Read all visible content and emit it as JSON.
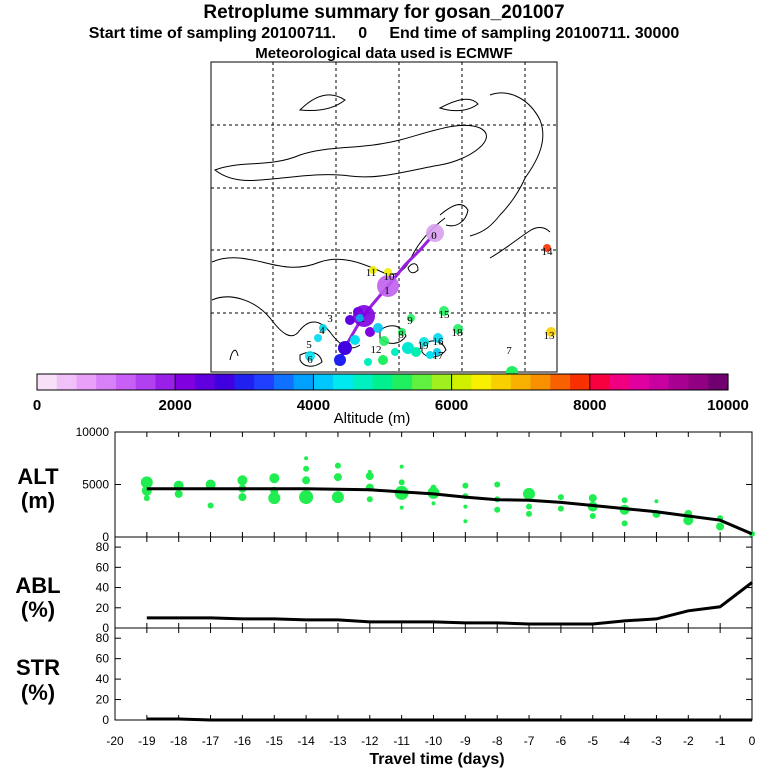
{
  "header": {
    "title": "Retroplume summary for gosan_201007",
    "sampling": "Start time of sampling 20100711.     0     End time of sampling 20100711. 30000",
    "met": "Meteorological data used is ECMWF"
  },
  "colorbar": {
    "label": "Altitude (m)",
    "ticks": [
      "0",
      "2000",
      "4000",
      "6000",
      "8000",
      "10000"
    ],
    "range": [
      0,
      10000
    ],
    "colors": [
      "#f8e0f8",
      "#f0c0f8",
      "#e8a0f8",
      "#d880f8",
      "#c860f8",
      "#b040f0",
      "#9820e8",
      "#8000e0",
      "#6000e0",
      "#4000e0",
      "#2020f0",
      "#2040ff",
      "#1070ff",
      "#00a0ff",
      "#00c8ff",
      "#00e8f0",
      "#00f0c0",
      "#00f090",
      "#20f060",
      "#60f040",
      "#a0f020",
      "#d0f000",
      "#f8f000",
      "#f8d000",
      "#f8b000",
      "#f89000",
      "#f86000",
      "#f83000",
      "#f80040",
      "#f00080",
      "#e000a0",
      "#c800a0",
      "#a80090",
      "#900080",
      "#700070"
    ]
  },
  "map": {
    "positions": [
      {
        "label": "0",
        "color": "#d8a0f0"
      },
      {
        "label": "1",
        "color": "#c060f0"
      },
      {
        "label": "2",
        "color": "#8000e0"
      },
      {
        "label": "3",
        "color": "#00c8f0"
      },
      {
        "label": "4",
        "color": "#00d8e8"
      },
      {
        "label": "5",
        "color": "#00d8f0"
      },
      {
        "label": "6",
        "color": "#00e0f0"
      },
      {
        "label": "7",
        "color": "#00b0f0"
      },
      {
        "label": "8",
        "color": "#20f060"
      },
      {
        "label": "9",
        "color": "#20f060"
      },
      {
        "label": "10",
        "color": "#f0f000"
      },
      {
        "label": "11",
        "color": "#f0f000"
      },
      {
        "label": "12",
        "color": "#20f060"
      },
      {
        "label": "13",
        "color": "#f8d000"
      },
      {
        "label": "14",
        "color": "#f83000"
      },
      {
        "label": "15",
        "color": "#20f060"
      },
      {
        "label": "16",
        "color": "#00d8f0"
      },
      {
        "label": "17",
        "color": "#00c8f0"
      },
      {
        "label": "18",
        "color": "#20f060"
      },
      {
        "label": "19",
        "color": "#00e0e0"
      }
    ]
  },
  "chart_data": [
    {
      "type": "scatter",
      "name": "ALT",
      "ylabel": "ALT\n(m)",
      "ylabel_lines": [
        "ALT",
        "(m)"
      ],
      "ylim": [
        0,
        10000
      ],
      "yticks": [
        "10000",
        "5000",
        "0"
      ],
      "marker_color": "#20ee50",
      "mean_line": {
        "x": [
          -19,
          -18,
          -17,
          -16,
          -15,
          -14,
          -13,
          -12,
          -11,
          -10,
          -9,
          -8,
          -7,
          -6,
          -5,
          -4,
          -3,
          -2,
          -1,
          0
        ],
        "y": [
          4600,
          4600,
          4600,
          4600,
          4600,
          4600,
          4550,
          4500,
          4300,
          4100,
          3800,
          3550,
          3500,
          3300,
          3000,
          2700,
          2400,
          2000,
          1600,
          300
        ]
      },
      "points": [
        {
          "x": -19,
          "y": 5200,
          "s": 6
        },
        {
          "x": -19,
          "y": 4400,
          "s": 5
        },
        {
          "x": -19,
          "y": 3700,
          "s": 3
        },
        {
          "x": -18,
          "y": 4900,
          "s": 5
        },
        {
          "x": -18,
          "y": 4100,
          "s": 4
        },
        {
          "x": -17,
          "y": 5000,
          "s": 5
        },
        {
          "x": -17,
          "y": 3000,
          "s": 3
        },
        {
          "x": -16,
          "y": 5400,
          "s": 5
        },
        {
          "x": -16,
          "y": 4600,
          "s": 4
        },
        {
          "x": -16,
          "y": 3800,
          "s": 4
        },
        {
          "x": -15,
          "y": 5600,
          "s": 5
        },
        {
          "x": -15,
          "y": 4400,
          "s": 4
        },
        {
          "x": -15,
          "y": 3700,
          "s": 6
        },
        {
          "x": -14,
          "y": 7500,
          "s": 2
        },
        {
          "x": -14,
          "y": 6500,
          "s": 3
        },
        {
          "x": -14,
          "y": 5400,
          "s": 4
        },
        {
          "x": -14,
          "y": 3800,
          "s": 7
        },
        {
          "x": -13,
          "y": 6800,
          "s": 3
        },
        {
          "x": -13,
          "y": 5700,
          "s": 4
        },
        {
          "x": -13,
          "y": 3800,
          "s": 6
        },
        {
          "x": -12,
          "y": 6200,
          "s": 2
        },
        {
          "x": -12,
          "y": 5800,
          "s": 4
        },
        {
          "x": -12,
          "y": 4700,
          "s": 4
        },
        {
          "x": -12,
          "y": 3600,
          "s": 3
        },
        {
          "x": -11,
          "y": 6700,
          "s": 2
        },
        {
          "x": -11,
          "y": 5200,
          "s": 3
        },
        {
          "x": -11,
          "y": 4200,
          "s": 7
        },
        {
          "x": -11,
          "y": 2800,
          "s": 2
        },
        {
          "x": -10,
          "y": 4700,
          "s": 3
        },
        {
          "x": -10,
          "y": 4200,
          "s": 6
        },
        {
          "x": -10,
          "y": 3200,
          "s": 2
        },
        {
          "x": -9,
          "y": 4900,
          "s": 3
        },
        {
          "x": -9,
          "y": 3900,
          "s": 3
        },
        {
          "x": -9,
          "y": 2900,
          "s": 2
        },
        {
          "x": -9,
          "y": 1500,
          "s": 2
        },
        {
          "x": -8,
          "y": 5000,
          "s": 3
        },
        {
          "x": -8,
          "y": 3600,
          "s": 3
        },
        {
          "x": -8,
          "y": 2600,
          "s": 3
        },
        {
          "x": -7,
          "y": 4100,
          "s": 6
        },
        {
          "x": -7,
          "y": 2900,
          "s": 3
        },
        {
          "x": -7,
          "y": 2200,
          "s": 3
        },
        {
          "x": -6,
          "y": 3800,
          "s": 3
        },
        {
          "x": -6,
          "y": 2700,
          "s": 3
        },
        {
          "x": -5,
          "y": 3700,
          "s": 4
        },
        {
          "x": -5,
          "y": 2900,
          "s": 5
        },
        {
          "x": -5,
          "y": 2000,
          "s": 3
        },
        {
          "x": -4,
          "y": 3500,
          "s": 3
        },
        {
          "x": -4,
          "y": 2600,
          "s": 5
        },
        {
          "x": -4,
          "y": 1300,
          "s": 3
        },
        {
          "x": -3,
          "y": 3400,
          "s": 2
        },
        {
          "x": -3,
          "y": 2200,
          "s": 4
        },
        {
          "x": -2,
          "y": 2200,
          "s": 4
        },
        {
          "x": -2,
          "y": 1600,
          "s": 5
        },
        {
          "x": -1,
          "y": 1800,
          "s": 3
        },
        {
          "x": -1,
          "y": 1000,
          "s": 4
        },
        {
          "x": 0,
          "y": 300,
          "s": 3
        }
      ]
    },
    {
      "type": "line",
      "name": "ABL",
      "ylabel": "ABL\n(%)",
      "ylabel_lines": [
        "ABL",
        "(%)"
      ],
      "ylim": [
        0,
        90
      ],
      "yticks": [
        "80",
        "60",
        "40",
        "20",
        "0"
      ],
      "x": [
        -19,
        -18,
        -17,
        -16,
        -15,
        -14,
        -13,
        -12,
        -11,
        -10,
        -9,
        -8,
        -7,
        -6,
        -5,
        -4,
        -3,
        -2,
        -1,
        0
      ],
      "y": [
        10,
        10,
        10,
        9,
        9,
        8,
        8,
        6,
        6,
        6,
        5,
        5,
        4,
        4,
        4,
        7,
        9,
        17,
        21,
        45
      ]
    },
    {
      "type": "line",
      "name": "STR",
      "ylabel": "STR\n(%)",
      "ylabel_lines": [
        "STR",
        "(%)"
      ],
      "ylim": [
        0,
        90
      ],
      "yticks": [
        "80",
        "60",
        "40",
        "20",
        "0"
      ],
      "x": [
        -19,
        -18,
        -17,
        -16,
        -15,
        -14,
        -13,
        -12,
        -11,
        -10,
        -9,
        -8,
        -7,
        -6,
        -5,
        -4,
        -3,
        -2,
        -1,
        0
      ],
      "y": [
        1,
        1,
        0,
        0,
        0,
        0,
        0,
        0,
        0,
        0,
        0,
        0,
        0,
        0,
        0,
        0,
        0,
        0,
        0,
        0
      ]
    }
  ],
  "xaxis": {
    "label": "Travel time (days)",
    "range": [
      -20,
      0
    ],
    "ticks": [
      "-20",
      "-19",
      "-18",
      "-17",
      "-16",
      "-15",
      "-14",
      "-13",
      "-12",
      "-11",
      "-10",
      "-9",
      "-8",
      "-7",
      "-6",
      "-5",
      "-4",
      "-3",
      "-2",
      "-1",
      "0"
    ]
  }
}
